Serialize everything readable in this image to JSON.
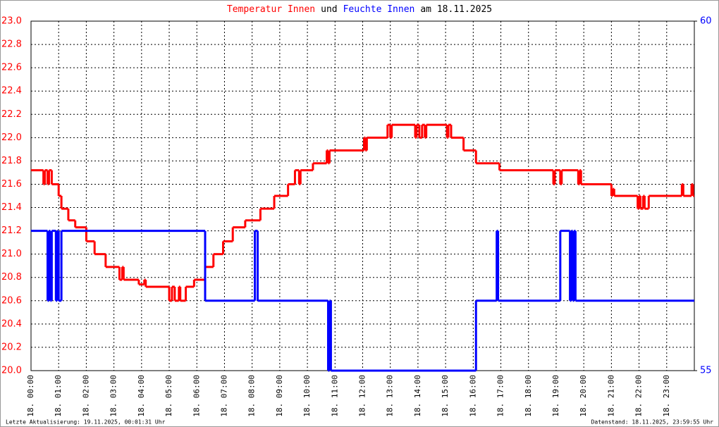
{
  "chart_data": {
    "type": "line",
    "step": true,
    "title_parts": [
      {
        "text": "Temperatur Innen",
        "color": "#ff0000"
      },
      {
        "text": "und",
        "color": "#000000"
      },
      {
        "text": "Feuchte Innen",
        "color": "#0000ff"
      },
      {
        "text": "am 18.11.2025",
        "color": "#000000"
      }
    ],
    "xlim": [
      0,
      24
    ],
    "xticks": [
      {
        "value": 0,
        "label": "18. 00:00"
      },
      {
        "value": 1,
        "label": "18. 01:00"
      },
      {
        "value": 2,
        "label": "18. 02:00"
      },
      {
        "value": 3,
        "label": "18. 03:00"
      },
      {
        "value": 4,
        "label": "18. 04:00"
      },
      {
        "value": 5,
        "label": "18. 05:00"
      },
      {
        "value": 6,
        "label": "18. 06:00"
      },
      {
        "value": 7,
        "label": "18. 07:00"
      },
      {
        "value": 8,
        "label": "18. 08:00"
      },
      {
        "value": 9,
        "label": "18. 09:00"
      },
      {
        "value": 10,
        "label": "18. 10:00"
      },
      {
        "value": 11,
        "label": "18. 11:00"
      },
      {
        "value": 12,
        "label": "18. 12:00"
      },
      {
        "value": 13,
        "label": "18. 13:00"
      },
      {
        "value": 14,
        "label": "18. 14:00"
      },
      {
        "value": 15,
        "label": "18. 15:00"
      },
      {
        "value": 16,
        "label": "18. 16:00"
      },
      {
        "value": 17,
        "label": "18. 17:00"
      },
      {
        "value": 18,
        "label": "18. 18:00"
      },
      {
        "value": 19,
        "label": "18. 19:00"
      },
      {
        "value": 20,
        "label": "18. 20:00"
      },
      {
        "value": 21,
        "label": "18. 21:00"
      },
      {
        "value": 22,
        "label": "18. 22:00"
      },
      {
        "value": 23,
        "label": "18. 23:00"
      }
    ],
    "ylim": [
      20.0,
      23.0
    ],
    "yticks": [
      {
        "value": 20.0,
        "label": "20.0"
      },
      {
        "value": 20.2,
        "label": "20.2"
      },
      {
        "value": 20.4,
        "label": "20.4"
      },
      {
        "value": 20.6,
        "label": "20.6"
      },
      {
        "value": 20.8,
        "label": "20.8"
      },
      {
        "value": 21.0,
        "label": "21.0"
      },
      {
        "value": 21.2,
        "label": "21.2"
      },
      {
        "value": 21.4,
        "label": "21.4"
      },
      {
        "value": 21.6,
        "label": "21.6"
      },
      {
        "value": 21.8,
        "label": "21.8"
      },
      {
        "value": 22.0,
        "label": "22.0"
      },
      {
        "value": 22.2,
        "label": "22.2"
      },
      {
        "value": 22.4,
        "label": "22.4"
      },
      {
        "value": 22.6,
        "label": "22.6"
      },
      {
        "value": 22.8,
        "label": "22.8"
      },
      {
        "value": 23.0,
        "label": "23.0"
      }
    ],
    "ytick_color": "#ff0000",
    "y2lim": [
      55,
      60
    ],
    "y2ticks": [
      55,
      60
    ],
    "y2tick_color": "#0000ff",
    "grid": true,
    "series": [
      {
        "name": "Temperatur Innen",
        "color": "#ff0000",
        "axis": "y",
        "x": [
          0,
          0.45,
          0.5,
          0.6,
          0.65,
          0.75,
          1.0,
          1.1,
          1.35,
          1.6,
          2.0,
          2.3,
          2.7,
          3.2,
          3.3,
          3.35,
          3.9,
          4.1,
          4.15,
          5.0,
          5.1,
          5.2,
          5.35,
          5.4,
          5.6,
          5.9,
          6.3,
          6.6,
          6.95,
          7.3,
          7.75,
          8.3,
          8.8,
          9.3,
          9.55,
          9.7,
          9.75,
          10.2,
          10.7,
          10.75,
          10.8,
          12.05,
          12.1,
          12.15,
          12.9,
          13.0,
          13.05,
          13.9,
          13.95,
          14.05,
          14.15,
          14.25,
          14.3,
          15.05,
          15.1,
          15.2,
          15.65,
          16.1,
          16.95,
          18.9,
          18.95,
          19.15,
          19.2,
          19.8,
          19.85,
          19.9,
          21.0,
          21.05,
          21.1,
          21.95,
          22.0,
          22.05,
          22.15,
          22.2,
          22.35,
          23.55,
          23.6,
          23.9,
          23.95
        ],
        "values": [
          21.72,
          21.6,
          21.72,
          21.6,
          21.72,
          21.6,
          21.5,
          21.39,
          21.29,
          21.23,
          21.11,
          21.0,
          20.89,
          20.78,
          20.89,
          20.78,
          20.74,
          20.78,
          20.72,
          20.6,
          20.72,
          20.6,
          20.72,
          20.6,
          20.72,
          20.78,
          20.89,
          21.0,
          21.11,
          21.23,
          21.29,
          21.39,
          21.5,
          21.6,
          21.72,
          21.6,
          21.72,
          21.78,
          21.89,
          21.78,
          21.89,
          22.0,
          21.89,
          22.0,
          22.11,
          22.0,
          22.11,
          22.0,
          22.11,
          22.0,
          22.11,
          22.0,
          22.11,
          22.0,
          22.11,
          22.0,
          21.89,
          21.78,
          21.72,
          21.6,
          21.72,
          21.6,
          21.72,
          21.6,
          21.72,
          21.6,
          21.5,
          21.56,
          21.5,
          21.39,
          21.5,
          21.39,
          21.5,
          21.39,
          21.5,
          21.6,
          21.5,
          21.6,
          21.5
        ]
      },
      {
        "name": "Feuchte Innen",
        "color": "#0000ff",
        "axis": "y2",
        "x": [
          0,
          0.6,
          0.65,
          0.7,
          0.75,
          0.9,
          0.95,
          1.0,
          1.1,
          6.3,
          8.1,
          8.2,
          10.75,
          10.8,
          10.85,
          16.1,
          16.85,
          16.9,
          19.15,
          19.5,
          19.55,
          19.6,
          19.65,
          19.7
        ],
        "values": [
          57,
          56,
          57,
          56,
          57,
          56,
          57,
          56,
          57,
          56,
          57,
          56,
          55,
          56,
          55,
          56,
          57,
          56,
          57,
          56,
          57,
          56,
          57,
          56
        ]
      }
    ],
    "footer_left": "Letzte Aktualisierung: 19.11.2025, 00:01:31 Uhr",
    "footer_right": "Datenstand: 18.11.2025, 23:59:55 Uhr"
  }
}
